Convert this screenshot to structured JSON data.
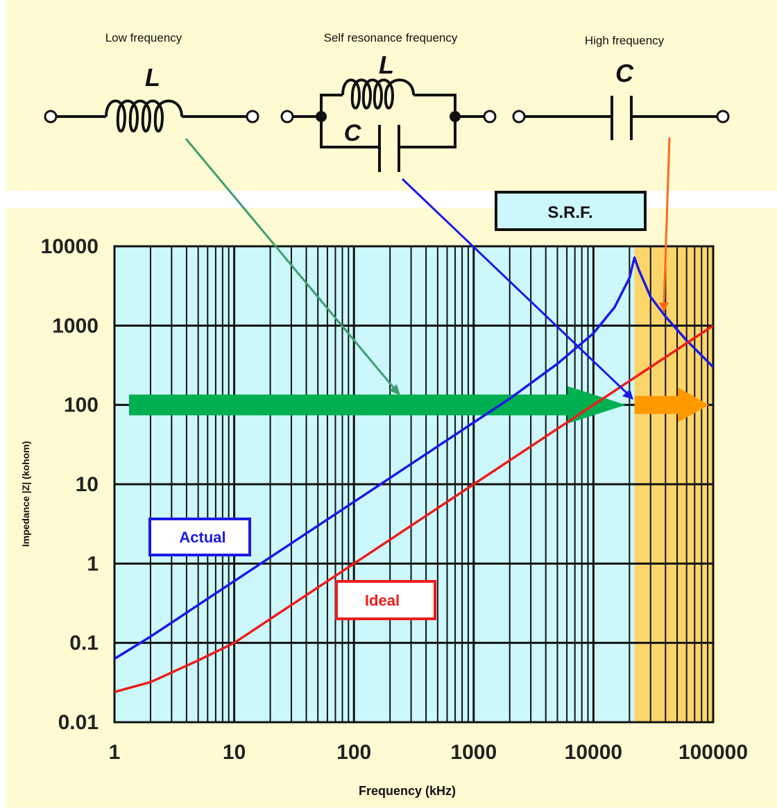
{
  "circuits": {
    "low": {
      "label": "Low frequency",
      "L": "L"
    },
    "srf": {
      "label": "Self resonance frequency",
      "L": "L",
      "C": "C"
    },
    "high": {
      "label": "High frequency",
      "C": "C"
    }
  },
  "srf_box": "S.R.F.",
  "legend": {
    "actual": "Actual",
    "ideal": "Ideal"
  },
  "colors": {
    "panel_bg": "#fefbd2",
    "plot_bg": "#ccf7fb",
    "srf_band": "#fcd56a",
    "actual": "#1a1ae6",
    "ideal": "#ee1c1c",
    "green_arrow": "#00b050",
    "orange_arrow": "#ff9900",
    "green_pointer": "#3d9e6e",
    "orange_pointer": "#ff6a1a"
  },
  "chart_data": {
    "type": "line",
    "xlabel": "Frequency (kHz)",
    "ylabel": "Impedance |Z| (kohom)",
    "xscale": "log",
    "yscale": "log",
    "xlim": [
      1,
      100000
    ],
    "ylim": [
      0.01,
      10000
    ],
    "grid": true,
    "x_ticks": [
      "1",
      "10",
      "100",
      "1000",
      "10000",
      "100000"
    ],
    "y_ticks": [
      "0.01",
      "0.1",
      "1",
      "10",
      "100",
      "1000",
      "10000"
    ],
    "srf_band_kHz": [
      22000,
      100000
    ],
    "arrow_level": 100,
    "series": [
      {
        "name": "Actual",
        "color": "#1a1ae6",
        "x": [
          1,
          2,
          3,
          5,
          10,
          20,
          50,
          100,
          200,
          500,
          1000,
          2000,
          5000,
          10000,
          15000,
          20000,
          22000,
          24000,
          30000,
          40000,
          60000,
          100000
        ],
        "y": [
          0.063,
          0.12,
          0.18,
          0.3,
          0.6,
          1.2,
          3.0,
          6.0,
          12,
          30,
          60,
          120,
          330,
          800,
          1700,
          4000,
          7200,
          5000,
          2300,
          1300,
          650,
          300
        ]
      },
      {
        "name": "Ideal",
        "color": "#ee1c1c",
        "x": [
          1,
          2,
          5,
          10,
          20,
          50,
          100,
          200,
          500,
          1000,
          2000,
          5000,
          10000,
          20000,
          50000,
          100000
        ],
        "y": [
          0.024,
          0.032,
          0.06,
          0.1,
          0.2,
          0.5,
          1.0,
          2.0,
          5.0,
          10,
          20,
          50,
          100,
          200,
          500,
          1000
        ]
      }
    ]
  }
}
